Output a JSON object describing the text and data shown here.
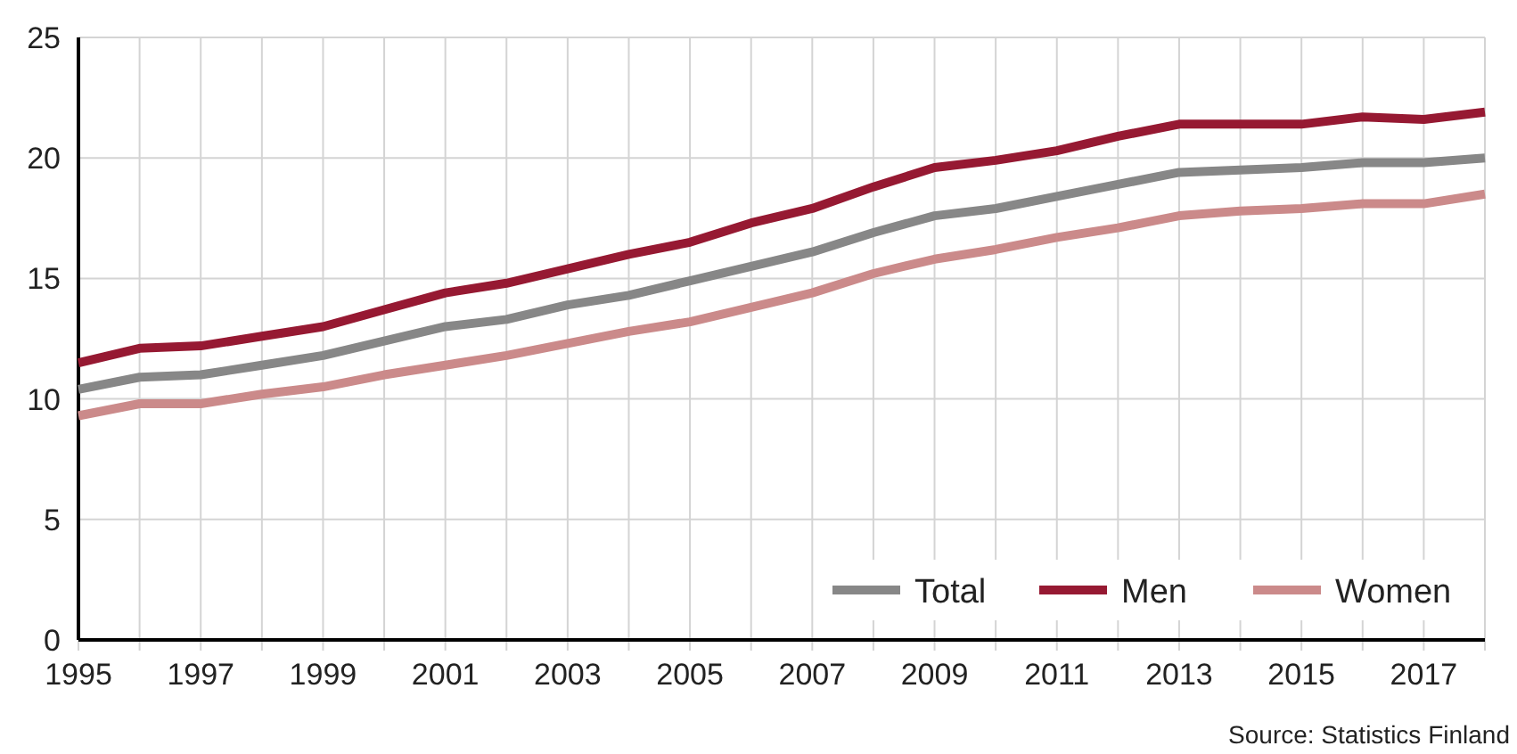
{
  "chart_data": {
    "type": "line",
    "x": [
      1995,
      1996,
      1997,
      1998,
      1999,
      2000,
      2001,
      2002,
      2003,
      2004,
      2005,
      2006,
      2007,
      2008,
      2009,
      2010,
      2011,
      2012,
      2013,
      2014,
      2015,
      2016,
      2017,
      2018
    ],
    "series": [
      {
        "name": "Total",
        "color": "#878787",
        "values": [
          10.4,
          10.9,
          11.0,
          11.4,
          11.8,
          12.4,
          13.0,
          13.3,
          13.9,
          14.3,
          14.9,
          15.5,
          16.1,
          16.9,
          17.6,
          17.9,
          18.4,
          18.9,
          19.4,
          19.5,
          19.6,
          19.8,
          19.8,
          20.0
        ]
      },
      {
        "name": "Men",
        "color": "#961932",
        "values": [
          11.5,
          12.1,
          12.2,
          12.6,
          13.0,
          13.7,
          14.4,
          14.8,
          15.4,
          16.0,
          16.5,
          17.3,
          17.9,
          18.8,
          19.6,
          19.9,
          20.3,
          20.9,
          21.4,
          21.4,
          21.4,
          21.7,
          21.6,
          21.9
        ]
      },
      {
        "name": "Women",
        "color": "#cb8a8a",
        "values": [
          9.3,
          9.8,
          9.8,
          10.2,
          10.5,
          11.0,
          11.4,
          11.8,
          12.3,
          12.8,
          13.2,
          13.8,
          14.4,
          15.2,
          15.8,
          16.2,
          16.7,
          17.1,
          17.6,
          17.8,
          17.9,
          18.1,
          18.1,
          18.5
        ]
      }
    ],
    "xlim": [
      1995,
      2018
    ],
    "xticks": [
      1995,
      {
        "value": 1996,
        "label": null
      },
      1997,
      {
        "value": 1998,
        "label": null
      },
      1999,
      {
        "value": 2000,
        "label": null
      },
      2001,
      {
        "value": 2002,
        "label": null
      },
      2003,
      {
        "value": 2004,
        "label": null
      },
      2005,
      {
        "value": 2006,
        "label": null
      },
      2007,
      {
        "value": 2008,
        "label": null
      },
      2009,
      {
        "value": 2010,
        "label": null
      },
      2011,
      {
        "value": 2012,
        "label": null
      },
      2013,
      {
        "value": 2014,
        "label": null
      },
      2015,
      {
        "value": 2016,
        "label": null
      },
      2017,
      {
        "value": 2018,
        "label": null
      }
    ],
    "ylim": [
      0,
      25
    ],
    "yticks": [
      0,
      5,
      10,
      15,
      20,
      25
    ],
    "grid": true,
    "legend": "bottom right",
    "marker": "none",
    "line_style": "solid",
    "annotations": [
      "Source: Statistics Finland"
    ]
  }
}
